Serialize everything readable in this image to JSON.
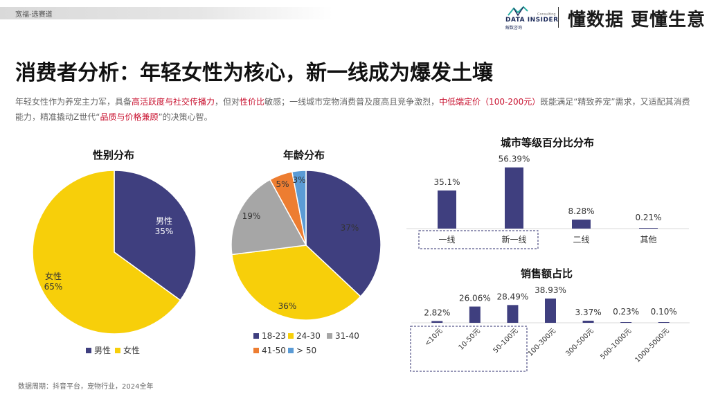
{
  "header": {
    "breadcrumb": "宽福-选赛道",
    "logo_text": "DATA INSIDER",
    "logo_sub": "解数咨询",
    "logo_small": "Consulting",
    "slogan": "懂数据 更懂生意"
  },
  "title": "消费者分析：年轻女性为核心，新一线成为爆发土壤",
  "description": {
    "p1": "年轻女性作为养宠主力军，具备",
    "h1": "高活跃度与社交传播力",
    "p2": "，但对",
    "h2": "性价比",
    "p3": "敏感；一线城市宠物消费普及度高且竞争激烈，",
    "h3": "中低端定价（100-200元）",
    "p4": "既能满足“精致养宠”需求，又适配其消费能力，精准撬动Z世代“",
    "h4": "品质与价格兼顾",
    "p5": "”的决策心智。"
  },
  "chart_data": [
    {
      "type": "pie",
      "title": "性别分布",
      "labels": [
        "男性",
        "女性"
      ],
      "values": [
        35,
        65
      ],
      "value_labels": [
        "35%",
        "65%"
      ],
      "colors": [
        "#3f3f7f",
        "#f7cf0a"
      ],
      "legend": "bottom"
    },
    {
      "type": "pie",
      "title": "年龄分布",
      "labels": [
        "18-23",
        "24-30",
        "31-40",
        "41-50",
        "> 50"
      ],
      "values": [
        37,
        36,
        19,
        5,
        3
      ],
      "value_labels": [
        "37%",
        "36%",
        "19%",
        "5%",
        "3%"
      ],
      "colors": [
        "#3f3f7f",
        "#f7cf0a",
        "#a6a6a6",
        "#ed7d31",
        "#5b9bd5"
      ],
      "legend": "bottom"
    },
    {
      "type": "bar",
      "title": "城市等级百分比分布",
      "categories": [
        "一线",
        "新一线",
        "二线",
        "其他"
      ],
      "values": [
        35.1,
        56.39,
        8.28,
        0.21
      ],
      "value_labels": [
        "35.1%",
        "56.39%",
        "8.28%",
        "0.21%"
      ],
      "color": "#3f3f7f",
      "ylim": [
        0,
        60
      ],
      "highlighted_categories": [
        "一线",
        "新一线"
      ]
    },
    {
      "type": "bar",
      "title": "销售额占比",
      "categories": [
        "<10元",
        "10-50元",
        "50-100元",
        "100-300元",
        "300-500元",
        "500-1000元",
        "1000-5000元"
      ],
      "values": [
        2.82,
        26.06,
        28.49,
        38.93,
        3.37,
        0.23,
        0.1
      ],
      "value_labels": [
        "2.82%",
        "26.06%",
        "28.49%",
        "38.93%",
        "3.37%",
        "0.23%",
        "0.10%"
      ],
      "color": "#3f3f7f",
      "ylim": [
        0,
        40
      ],
      "highlighted_categories": [
        "<10元",
        "10-50元",
        "50-100元"
      ]
    }
  ],
  "source": "数据周期：抖音平台，宠物行业，2024全年"
}
